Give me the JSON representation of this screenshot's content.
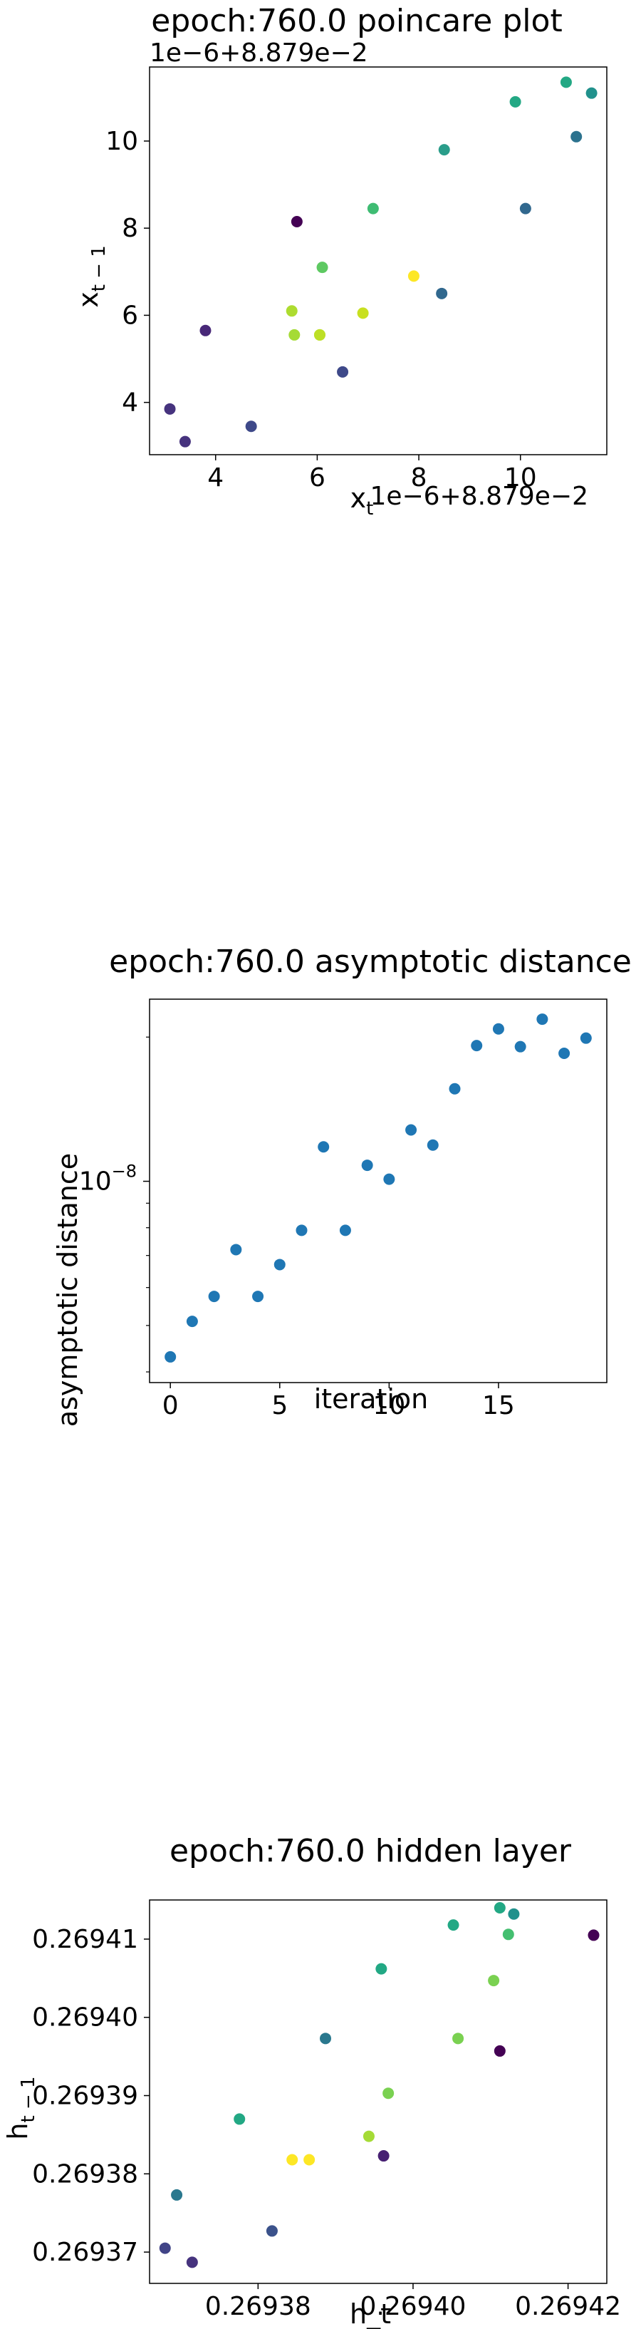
{
  "chart_data": [
    {
      "type": "scatter",
      "title": "epoch:760.0 poincare plot",
      "xlabel": "x_t",
      "ylabel": "x_{t-1}",
      "x_offset_text": "1e−6+8.879e−2",
      "y_offset_text": "1e−6+8.879e−2",
      "xlim": [
        2.7,
        11.7
      ],
      "ylim": [
        2.8,
        11.7
      ],
      "xticks": [
        4,
        6,
        8,
        10
      ],
      "yticks": [
        4,
        6,
        8,
        10
      ],
      "colormap": "viridis",
      "x": [
        3.1,
        3.4,
        3.8,
        4.7,
        5.6,
        5.5,
        5.55,
        6.05,
        6.1,
        6.05,
        6.5,
        6.9,
        7.1,
        7.9,
        8.45,
        8.5,
        9.9,
        10.1,
        10.9,
        11.1,
        11.4
      ],
      "y": [
        3.85,
        3.1,
        5.65,
        3.45,
        8.15,
        6.1,
        5.55,
        5.55,
        7.1,
        5.55,
        4.7,
        6.05,
        8.45,
        6.9,
        6.5,
        9.8,
        10.9,
        8.45,
        11.35,
        10.1,
        11.1
      ],
      "colors": [
        "#46337e",
        "#46337e",
        "#482878",
        "#3e4989",
        "#440154",
        "#addc30",
        "#a5db36",
        "#bddf26",
        "#5ec962",
        "#bddf26",
        "#3e4989",
        "#c8e020",
        "#3fbc73",
        "#fde725",
        "#31688e",
        "#2a9d8a",
        "#23a884",
        "#31688e",
        "#23a884",
        "#2c728e",
        "#21918c"
      ]
    },
    {
      "type": "scatter",
      "title": "epoch:760.0 asymptotic distance",
      "xlabel": "iteration",
      "ylabel": "asymptotic distance",
      "yscale": "log",
      "xlim": [
        -0.95,
        19.95
      ],
      "xticks": [
        0,
        5,
        10,
        15
      ],
      "y_tick_label": "10^{-8}",
      "point_color": "#1f77b4",
      "x": [
        0,
        1,
        2,
        3,
        4,
        5,
        6,
        7,
        8,
        9,
        10,
        11,
        12,
        13,
        14,
        15,
        16,
        17,
        18,
        19
      ],
      "y": [
        4.3e-09,
        5.1e-09,
        5.75e-09,
        7.2e-09,
        5.75e-09,
        6.7e-09,
        7.9e-09,
        1.18e-08,
        7.9e-09,
        1.08e-08,
        1.01e-08,
        1.28e-08,
        1.19e-08,
        1.56e-08,
        1.92e-08,
        2.08e-08,
        1.91e-08,
        2.18e-08,
        1.85e-08,
        1.99e-08
      ]
    },
    {
      "type": "scatter",
      "title": "epoch:760.0 hidden layer",
      "xlabel": "h_t",
      "ylabel": "h_{t-1}",
      "xlim": [
        0.269366,
        0.269425
      ],
      "ylim": [
        0.269366,
        0.269415
      ],
      "xticks": [
        "0.26938",
        "0.26940",
        "0.26942"
      ],
      "yticks": [
        "0.26937",
        "0.26938",
        "0.26939",
        "0.26940",
        "0.26941"
      ],
      "colormap": "viridis",
      "x": [
        0.269368,
        0.2693695,
        0.2693715,
        0.2693776,
        0.2693818,
        0.2693844,
        0.2693866,
        0.2693887,
        0.2693943,
        0.2693962,
        0.2693968,
        0.2693959,
        0.2694058,
        0.2694052,
        0.2694104,
        0.2694112,
        0.269413,
        0.2694123,
        0.2694112,
        0.2694233
      ],
      "y": [
        0.2693705,
        0.2693773,
        0.2693687,
        0.269387,
        0.2693727,
        0.2693818,
        0.2693818,
        0.2693973,
        0.2693848,
        0.2693823,
        0.2693903,
        0.2694062,
        0.2693973,
        0.2694118,
        0.2694047,
        0.2693957,
        0.2694132,
        0.2694106,
        0.269414,
        0.2694105
      ],
      "colors": [
        "#414487",
        "#2a788e",
        "#46337e",
        "#22a884",
        "#3b528b",
        "#fde725",
        "#fde725",
        "#2a788e",
        "#a5db36",
        "#482173",
        "#7ad151",
        "#22a884",
        "#7ad151",
        "#22a884",
        "#7ad151",
        "#440154",
        "#21918c",
        "#44bf70",
        "#22a884",
        "#440154"
      ]
    }
  ]
}
